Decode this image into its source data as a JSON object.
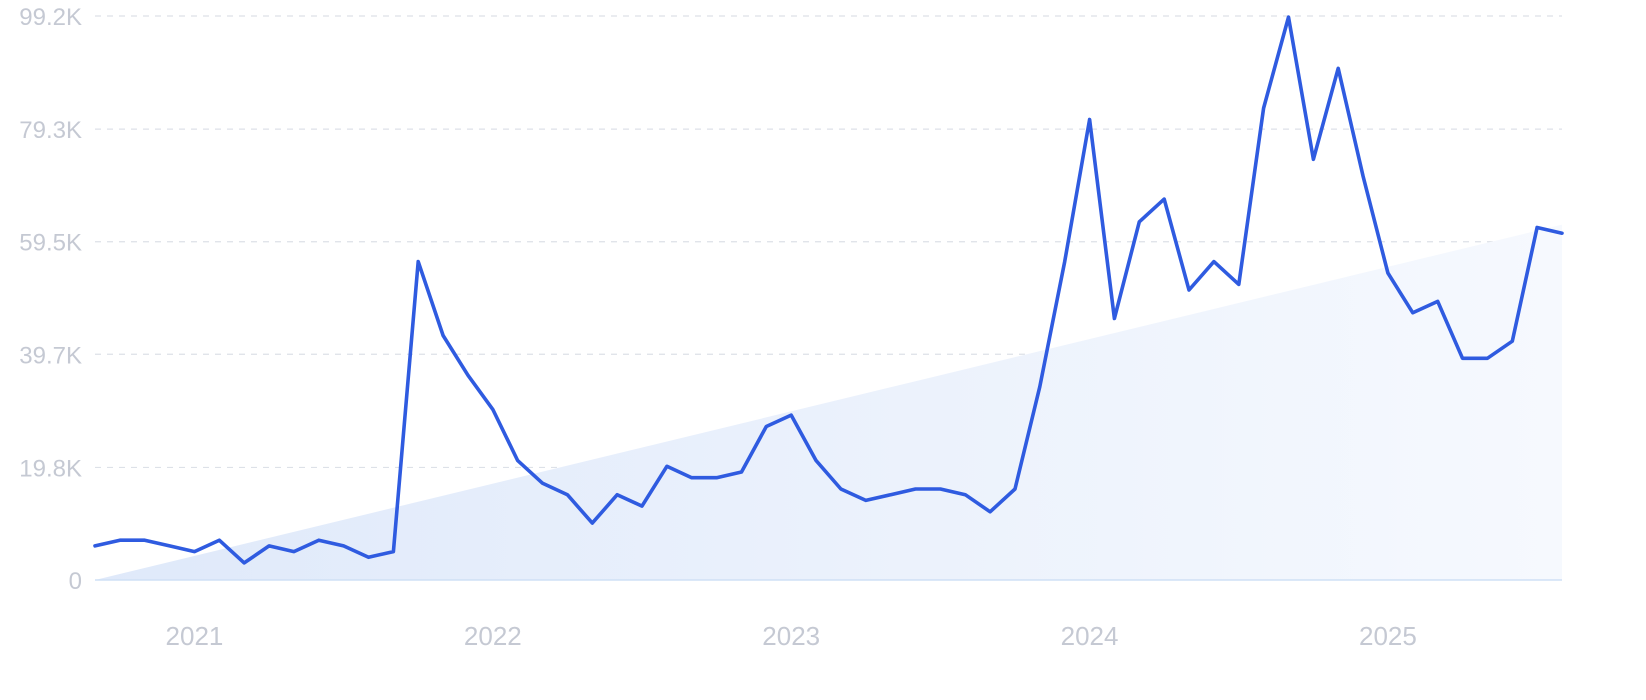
{
  "chart_data": {
    "type": "line",
    "title": "",
    "xlabel": "",
    "ylabel": "",
    "y_ticks": [
      "0",
      "19.8K",
      "39.7K",
      "59.5K",
      "79.3K",
      "99.2K"
    ],
    "y_tick_values": [
      0,
      19800,
      39700,
      59500,
      79300,
      99200
    ],
    "ylim": [
      0,
      99200
    ],
    "x_ticks": [
      "2021",
      "2022",
      "2023",
      "2024",
      "2025"
    ],
    "x_tick_values": [
      "2021-01",
      "2022-01",
      "2023-01",
      "2024-01",
      "2025-01"
    ],
    "xlim": [
      "2020-09",
      "2025-08"
    ],
    "grid": true,
    "colors": {
      "line": "#2f5be0",
      "area_start": "#dfe9fa",
      "area_end": "#f6f9fe",
      "grid": "#dde1e8",
      "baseline": "#cfe0f5",
      "tick": "#c5c9d3"
    },
    "trend": {
      "start": [
        "2020-09",
        0
      ],
      "end": [
        "2025-08",
        62500
      ]
    },
    "series": [
      {
        "values": [
          [
            "2020-09",
            6000
          ],
          [
            "2020-10",
            7000
          ],
          [
            "2020-11",
            7000
          ],
          [
            "2020-12",
            6000
          ],
          [
            "2021-01",
            5000
          ],
          [
            "2021-02",
            7000
          ],
          [
            "2021-03",
            3000
          ],
          [
            "2021-04",
            6000
          ],
          [
            "2021-05",
            5000
          ],
          [
            "2021-06",
            7000
          ],
          [
            "2021-07",
            6000
          ],
          [
            "2021-08",
            4000
          ],
          [
            "2021-09",
            5000
          ],
          [
            "2021-10",
            56000
          ],
          [
            "2021-11",
            43000
          ],
          [
            "2021-12",
            36000
          ],
          [
            "2022-01",
            30000
          ],
          [
            "2022-02",
            21000
          ],
          [
            "2022-03",
            17000
          ],
          [
            "2022-04",
            15000
          ],
          [
            "2022-05",
            10000
          ],
          [
            "2022-06",
            15000
          ],
          [
            "2022-07",
            13000
          ],
          [
            "2022-08",
            20000
          ],
          [
            "2022-09",
            18000
          ],
          [
            "2022-10",
            18000
          ],
          [
            "2022-11",
            19000
          ],
          [
            "2022-12",
            27000
          ],
          [
            "2023-01",
            29000
          ],
          [
            "2023-02",
            21000
          ],
          [
            "2023-03",
            16000
          ],
          [
            "2023-04",
            14000
          ],
          [
            "2023-05",
            15000
          ],
          [
            "2023-06",
            16000
          ],
          [
            "2023-07",
            16000
          ],
          [
            "2023-08",
            15000
          ],
          [
            "2023-09",
            12000
          ],
          [
            "2023-10",
            16000
          ],
          [
            "2023-11",
            34000
          ],
          [
            "2023-12",
            56000
          ],
          [
            "2024-01",
            81000
          ],
          [
            "2024-02",
            46000
          ],
          [
            "2024-03",
            63000
          ],
          [
            "2024-04",
            67000
          ],
          [
            "2024-05",
            51000
          ],
          [
            "2024-06",
            56000
          ],
          [
            "2024-07",
            52000
          ],
          [
            "2024-08",
            83000
          ],
          [
            "2024-09",
            99000
          ],
          [
            "2024-10",
            74000
          ],
          [
            "2024-11",
            90000
          ],
          [
            "2024-12",
            71000
          ],
          [
            "2025-01",
            54000
          ],
          [
            "2025-02",
            47000
          ],
          [
            "2025-03",
            49000
          ],
          [
            "2025-04",
            39000
          ],
          [
            "2025-05",
            39000
          ],
          [
            "2025-06",
            42000
          ],
          [
            "2025-07",
            62000
          ],
          [
            "2025-08",
            61000
          ]
        ]
      }
    ]
  }
}
